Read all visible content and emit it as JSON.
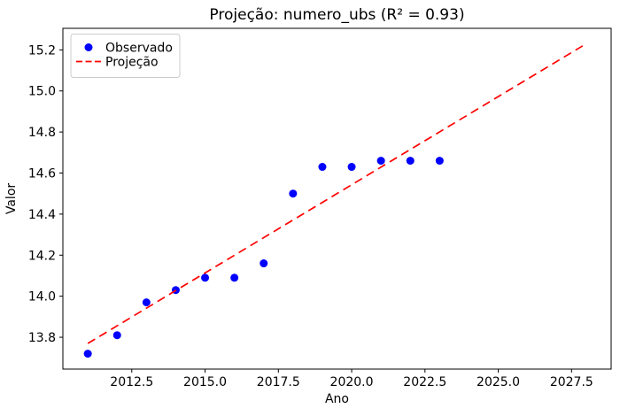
{
  "chart_data": {
    "type": "scatter",
    "title": "Projeção: numero_ubs (R² = 0.93)",
    "xlabel": "Ano",
    "ylabel": "Valor",
    "xlim": [
      2010.15,
      2028.85
    ],
    "ylim": [
      13.645,
      15.305
    ],
    "x_ticks": [
      2012.5,
      2015.0,
      2017.5,
      2020.0,
      2022.5,
      2025.0,
      2027.5
    ],
    "x_tick_labels": [
      "2012.5",
      "2015.0",
      "2017.5",
      "2020.0",
      "2022.5",
      "2025.0",
      "2027.5"
    ],
    "y_ticks": [
      13.8,
      14.0,
      14.2,
      14.4,
      14.6,
      14.8,
      15.0,
      15.2
    ],
    "y_tick_labels": [
      "13.8",
      "14.0",
      "14.2",
      "14.4",
      "14.6",
      "14.8",
      "15.0",
      "15.2"
    ],
    "grid": false,
    "background_color": "#ffffff",
    "legend": {
      "position": "upper-left",
      "entries": [
        {
          "label": "Observado",
          "marker": "circle",
          "color": "#0000ff"
        },
        {
          "label": "Projeção",
          "marker": "dashed-line",
          "color": "#ff0000"
        }
      ]
    },
    "series": [
      {
        "name": "Observado",
        "type": "scatter",
        "color": "#0000ff",
        "x": [
          2011,
          2012,
          2013,
          2014,
          2015,
          2016,
          2017,
          2018,
          2019,
          2020,
          2021,
          2022,
          2023
        ],
        "y": [
          13.72,
          13.81,
          13.97,
          14.03,
          14.09,
          14.09,
          14.16,
          14.5,
          14.63,
          14.63,
          14.66,
          14.66,
          14.66
        ]
      },
      {
        "name": "Projeção",
        "type": "line",
        "line_style": "dashed",
        "color": "#ff0000",
        "x": [
          2011,
          2028
        ],
        "y": [
          13.77,
          15.23
        ]
      }
    ]
  }
}
